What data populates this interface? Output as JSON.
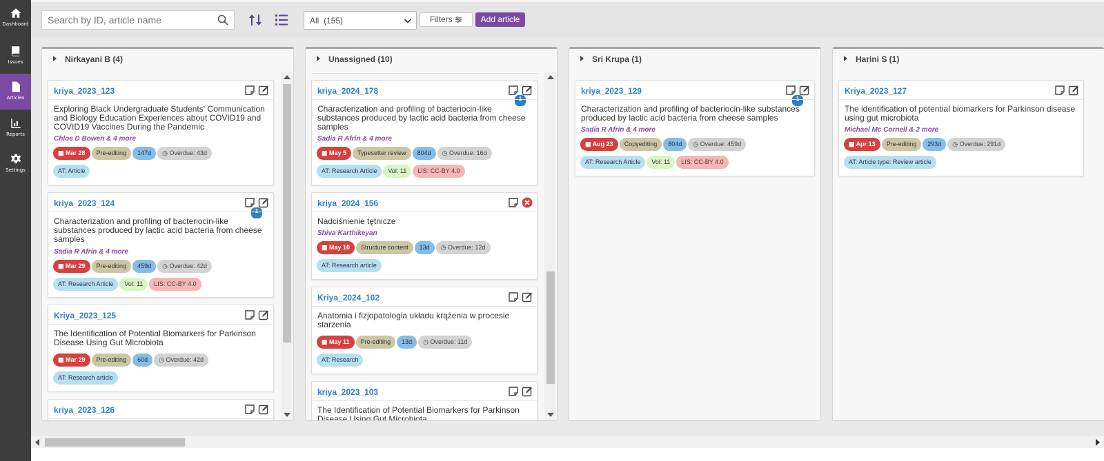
{
  "sidebar": {
    "items": [
      {
        "label": "Dashboard",
        "icon": "home-icon"
      },
      {
        "label": "Issues",
        "icon": "book-icon"
      },
      {
        "label": "Articles",
        "icon": "document-icon",
        "active": true
      },
      {
        "label": "Reports",
        "icon": "chart-icon"
      },
      {
        "label": "Settings",
        "icon": "gear-icon"
      }
    ]
  },
  "toolbar": {
    "search_placeholder": "Search by ID, article name",
    "filter_select": "All  (155)",
    "filters_label": "Filters",
    "add_label": "Add article"
  },
  "columns": [
    {
      "title": "Nirkayani B (4)",
      "cards": [
        {
          "id": "kriya_2023_123",
          "title": "Exploring Black Undergraduate Students' Communication and Biology Education Experiences about COVID19 and COVID19 Vaccines During the Pandemic",
          "authors": "Chloe D Bowen & 4 more",
          "due": "Mar 28",
          "stage": "Pre-editing",
          "days": "147d",
          "overdue": "Overdue: 43d",
          "tags": [
            "AT: Article"
          ],
          "badge": ""
        },
        {
          "id": "kriya_2023_124",
          "title": "Characterization and profiling of bacteriocin-like substances produced by lactic acid bacteria from cheese samples",
          "authors": "Sadia R Afrin & 4 more",
          "due": "Mar 29",
          "stage": "Pre-editing",
          "days": "459d",
          "overdue": "Overdue: 42d",
          "tags": [
            "AT: Research Article",
            "Vol: 11",
            "LIS: CC-BY 4.0"
          ],
          "badge": "1"
        },
        {
          "id": "Kriya_2023_125",
          "title": "The Identification of Potential Biomarkers for Parkinson Disease Using Gut Microbiota",
          "authors": "",
          "due": "Mar 29",
          "stage": "Pre-editing",
          "days": "60d",
          "overdue": "Overdue: 42d",
          "tags": [
            "AT: Research article"
          ],
          "badge": ""
        },
        {
          "id": "kriya_2023_126",
          "title": "",
          "authors": "",
          "due": "",
          "stage": "",
          "days": "",
          "overdue": "",
          "tags": [],
          "badge": ""
        }
      ]
    },
    {
      "title": "Unassigned (10)",
      "cards": [
        {
          "id": "kriya_2024_178",
          "title": "Characterization and profiling of bacteriocin-like substances produced by lactic acid bacteria from cheese samples",
          "authors": "Sadia R Afrin & 4 more",
          "due": "May 5",
          "stage": "Typesetter review",
          "days": "804d",
          "overdue": "Overdue: 16d",
          "tags": [
            "AT: Research Article",
            "Vol: 11",
            "LIS: CC-BY 4.0"
          ],
          "badge": "1"
        },
        {
          "id": "kriya_2024_156",
          "title": "Nadciśnienie tętnicze",
          "authors": "Shiva Karthikeyan",
          "due": "May 10",
          "stage": "Structure content",
          "days": "13d",
          "overdue": "Overdue: 12d",
          "tags": [
            "AT: Research article"
          ],
          "badge": ""
        },
        {
          "id": "Kriya_2024_102",
          "title": "Anatomia i fizjopatologia układu krążenia w procesie starzenia",
          "authors": "",
          "due": "May 11",
          "stage": "Pre-editing",
          "days": "13d",
          "overdue": "Overdue: 11d",
          "tags": [
            "AT: Research"
          ],
          "badge": ""
        },
        {
          "id": "kriya_2023_103",
          "title": "The Identification of Potential Biomarkers for Parkinson Disease Using Gut Microbiota",
          "authors": "",
          "due": "",
          "stage": "",
          "days": "",
          "overdue": "",
          "tags": [],
          "badge": ""
        }
      ]
    },
    {
      "title": "Sri Krupa (1)",
      "cards": [
        {
          "id": "kriya_2023_129",
          "title": "Characterization and profiling of bacteriocin-like substances produced by lactic acid bacteria from cheese samples",
          "authors": "Sadia R Afrin & 4 more",
          "due": "Aug 23",
          "stage": "Copyediting",
          "days": "804d",
          "overdue": "Overdue: 459d",
          "tags": [
            "AT: Research Article",
            "Vol: 11",
            "LIS: CC-BY 4.0"
          ],
          "badge": "1"
        }
      ]
    },
    {
      "title": "Harini S (1)",
      "cards": [
        {
          "id": "Kriya_2023_127",
          "title": "The identification of potential biomarkers for Parkinson disease using gut microbiota",
          "authors": "Michael Mc Cornell & 2 more",
          "due": "Apr 13",
          "stage": "Pre-editing",
          "days": "293d",
          "overdue": "Overdue: 291d",
          "tags": [
            "AT: Article type: Review article"
          ],
          "badge": ""
        }
      ]
    }
  ],
  "colors": {
    "accent": "#7a4ba0",
    "link": "#2e80c6",
    "due": "#d7403e"
  }
}
